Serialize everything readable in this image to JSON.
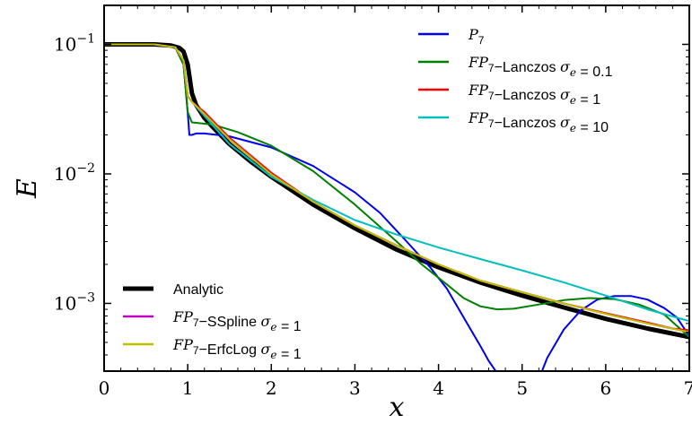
{
  "chart_data": {
    "type": "line",
    "xlabel": "x",
    "ylabel": "E",
    "xlim": [
      0,
      7
    ],
    "ylim": [
      0.0003,
      0.2
    ],
    "yscale": "log",
    "grid": false,
    "x_ticks": [
      "0",
      "1",
      "2",
      "3",
      "4",
      "5",
      "6",
      "7"
    ],
    "y_ticks": [
      {
        "value": 0.1,
        "base": "10",
        "exp": "−1"
      },
      {
        "value": 0.01,
        "base": "10",
        "exp": "−2"
      },
      {
        "value": 0.001,
        "base": "10",
        "exp": "−3"
      }
    ],
    "legends": [
      {
        "placement": "top-right",
        "entries": [
          {
            "series": "p7",
            "parts": [
              {
                "t": "P",
                "i": true
              },
              {
                "t": "7",
                "sub": true
              }
            ]
          },
          {
            "series": "lanczos01",
            "parts": [
              {
                "t": "FP",
                "i": true
              },
              {
                "t": "7",
                "sub": true
              },
              {
                "t": "−Lanczos ",
                "i": false
              },
              {
                "t": "σ",
                "i": true
              },
              {
                "t": "e",
                "sub": true,
                "i": true
              },
              {
                "t": " = 0.1",
                "i": false
              }
            ]
          },
          {
            "series": "lanczos1",
            "parts": [
              {
                "t": "FP",
                "i": true
              },
              {
                "t": "7",
                "sub": true
              },
              {
                "t": "−Lanczos ",
                "i": false
              },
              {
                "t": "σ",
                "i": true
              },
              {
                "t": "e",
                "sub": true,
                "i": true
              },
              {
                "t": " = 1",
                "i": false
              }
            ]
          },
          {
            "series": "lanczos10",
            "parts": [
              {
                "t": "FP",
                "i": true
              },
              {
                "t": "7",
                "sub": true
              },
              {
                "t": "−Lanczos ",
                "i": false
              },
              {
                "t": "σ",
                "i": true
              },
              {
                "t": "e",
                "sub": true,
                "i": true
              },
              {
                "t": " = 10",
                "i": false
              }
            ]
          }
        ]
      },
      {
        "placement": "bottom-left",
        "entries": [
          {
            "series": "analytic",
            "parts": [
              {
                "t": "Analytic",
                "i": false
              }
            ]
          },
          {
            "series": "sspline",
            "parts": [
              {
                "t": "FP",
                "i": true
              },
              {
                "t": "7",
                "sub": true
              },
              {
                "t": "−SSpline ",
                "i": false
              },
              {
                "t": "σ",
                "i": true
              },
              {
                "t": "e",
                "sub": true,
                "i": true
              },
              {
                "t": " = 1",
                "i": false
              }
            ]
          },
          {
            "series": "erfclog",
            "parts": [
              {
                "t": "FP",
                "i": true
              },
              {
                "t": "7",
                "sub": true
              },
              {
                "t": "−ErfcLog ",
                "i": false
              },
              {
                "t": "σ",
                "i": true
              },
              {
                "t": "e",
                "sub": true,
                "i": true
              },
              {
                "t": " = 1",
                "i": false
              }
            ]
          }
        ]
      }
    ],
    "series": [
      {
        "id": "analytic",
        "color": "#000000",
        "width": 5,
        "x": [
          0,
          0.6,
          0.8,
          0.9,
          0.95,
          1.0,
          1.05,
          1.1,
          1.2,
          1.3,
          1.5,
          1.75,
          2.0,
          2.5,
          3.0,
          3.5,
          4.0,
          4.5,
          5.0,
          5.5,
          6.0,
          6.5,
          7.0
        ],
        "y": [
          0.1,
          0.1,
          0.098,
          0.094,
          0.088,
          0.07,
          0.042,
          0.034,
          0.027,
          0.023,
          0.017,
          0.0125,
          0.0095,
          0.0058,
          0.0038,
          0.0026,
          0.0019,
          0.00145,
          0.00115,
          0.00093,
          0.00076,
          0.00064,
          0.00055
        ]
      },
      {
        "id": "p7",
        "color": "#0000ee",
        "width": 2,
        "x": [
          0,
          0.6,
          0.85,
          0.95,
          1.0,
          1.02,
          1.05,
          1.1,
          1.2,
          1.5,
          2.0,
          2.5,
          3.0,
          3.3,
          3.6,
          3.9,
          4.1,
          4.3,
          4.5,
          4.6,
          4.7,
          4.76,
          5.22,
          5.3,
          5.5,
          5.7,
          5.9,
          6.1,
          6.3,
          6.5,
          6.7,
          6.85,
          7.0
        ],
        "y": [
          0.1,
          0.1,
          0.095,
          0.07,
          0.03,
          0.02,
          0.02,
          0.0205,
          0.0205,
          0.0195,
          0.016,
          0.0115,
          0.0072,
          0.005,
          0.0031,
          0.0019,
          0.0013,
          0.00078,
          0.00047,
          0.00036,
          0.00029,
          0.00028,
          0.00028,
          0.00038,
          0.00063,
          0.00088,
          0.00107,
          0.00114,
          0.00114,
          0.00107,
          0.00092,
          0.00078,
          0.00056
        ]
      },
      {
        "id": "lanczos01",
        "color": "#008000",
        "width": 2,
        "x": [
          0,
          0.6,
          0.85,
          0.95,
          1.0,
          1.05,
          1.3,
          1.6,
          2.0,
          2.5,
          3.0,
          3.5,
          3.8,
          4.1,
          4.3,
          4.5,
          4.7,
          4.9,
          5.2,
          5.5,
          5.8,
          6.1,
          6.4,
          6.7,
          7.0
        ],
        "y": [
          0.1,
          0.1,
          0.095,
          0.07,
          0.03,
          0.025,
          0.024,
          0.021,
          0.0165,
          0.0105,
          0.0058,
          0.003,
          0.002,
          0.0014,
          0.0011,
          0.00095,
          0.0009,
          0.00091,
          0.00098,
          0.00106,
          0.0011,
          0.00108,
          0.00098,
          0.00082,
          0.00055
        ]
      },
      {
        "id": "lanczos1",
        "color": "#ff0000",
        "width": 2,
        "x": [
          0,
          0.6,
          0.85,
          0.95,
          1.0,
          1.05,
          1.2,
          1.5,
          2.0,
          2.5,
          3.0,
          3.5,
          4.0,
          4.5,
          5.0,
          5.5,
          6.0,
          6.5,
          6.8,
          7.0
        ],
        "y": [
          0.1,
          0.1,
          0.095,
          0.075,
          0.04,
          0.036,
          0.03,
          0.019,
          0.0102,
          0.0061,
          0.004,
          0.0028,
          0.002,
          0.0015,
          0.00122,
          0.001,
          0.00084,
          0.00071,
          0.00064,
          0.00062
        ]
      },
      {
        "id": "lanczos10",
        "color": "#00bfbf",
        "width": 2,
        "x": [
          0,
          0.6,
          0.85,
          0.95,
          1.0,
          1.05,
          1.2,
          1.5,
          2.0,
          2.5,
          3.0,
          3.5,
          4.0,
          4.5,
          5.0,
          5.5,
          6.0,
          6.5,
          7.0
        ],
        "y": [
          0.1,
          0.1,
          0.095,
          0.075,
          0.04,
          0.036,
          0.028,
          0.017,
          0.0095,
          0.0063,
          0.0044,
          0.0034,
          0.0027,
          0.0022,
          0.0018,
          0.00145,
          0.00115,
          0.0009,
          0.00073
        ]
      },
      {
        "id": "sspline",
        "color": "#bf00bf",
        "width": 2,
        "x": [
          0,
          0.6,
          0.85,
          0.95,
          1.0,
          1.05,
          1.2,
          1.5,
          2.0,
          2.5,
          3.0,
          3.5,
          4.0,
          4.5,
          5.0,
          5.5,
          6.0,
          6.5,
          7.0
        ],
        "y": [
          0.1,
          0.1,
          0.095,
          0.075,
          0.04,
          0.036,
          0.029,
          0.0185,
          0.0099,
          0.0061,
          0.004,
          0.0028,
          0.002,
          0.0015,
          0.00122,
          0.001,
          0.00083,
          0.0007,
          0.0006
        ]
      },
      {
        "id": "erfclog",
        "color": "#bfbf00",
        "width": 2,
        "x": [
          0,
          0.6,
          0.85,
          0.95,
          1.0,
          1.05,
          1.2,
          1.5,
          2.0,
          2.5,
          3.0,
          3.5,
          4.0,
          4.5,
          5.0,
          5.5,
          6.0,
          6.5,
          7.0
        ],
        "y": [
          0.1,
          0.1,
          0.095,
          0.075,
          0.04,
          0.036,
          0.029,
          0.0185,
          0.0099,
          0.0061,
          0.004,
          0.0028,
          0.002,
          0.0015,
          0.00122,
          0.001,
          0.00083,
          0.0007,
          0.0006
        ]
      }
    ]
  }
}
